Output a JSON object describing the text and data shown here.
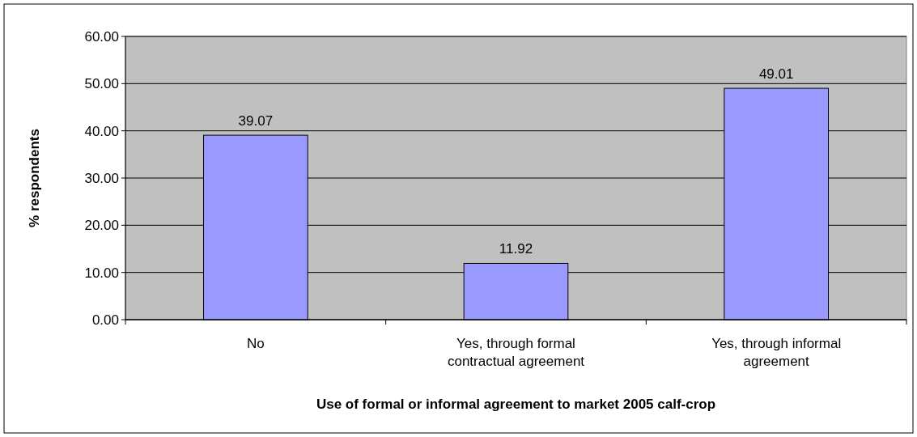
{
  "chart_data": {
    "type": "bar",
    "xlabel": "Use of formal or informal agreement to market 2005 calf-crop",
    "ylabel": "% respondents",
    "categories": [
      "No",
      "Yes, through formal contractual agreement",
      "Yes, through informal agreement"
    ],
    "values": [
      39.07,
      11.92,
      49.01
    ],
    "color": "#9999ff",
    "data_labels": true,
    "grid": "y",
    "ylim": [
      0,
      60
    ],
    "yticks": [
      {
        "value": 0,
        "label": "0.00"
      },
      {
        "value": 10,
        "label": "10.00"
      },
      {
        "value": 20,
        "label": "20.00"
      },
      {
        "value": 30,
        "label": "30.00"
      },
      {
        "value": 40,
        "label": "40.00"
      },
      {
        "value": 50,
        "label": "50.00"
      },
      {
        "value": 60,
        "label": "60.00"
      }
    ]
  }
}
